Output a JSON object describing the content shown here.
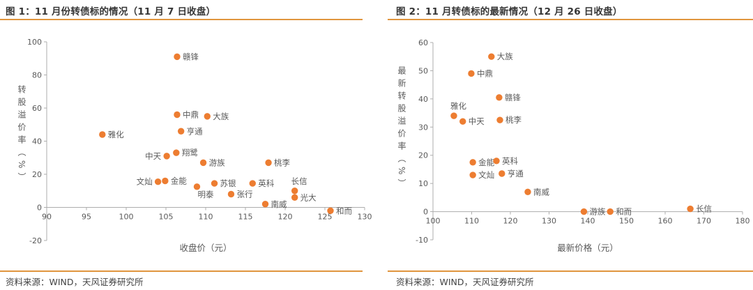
{
  "colors": {
    "marker_orange": "#ED7D31",
    "rule_orange": "#E0953E",
    "axis_line": "#ADADAD",
    "tick_text": "#595959",
    "point_label_text": "#595959",
    "title_text": "#363636",
    "source_text": "#424242"
  },
  "panels": [
    {
      "source": "资料来源：WIND，天风证券研究所"
    },
    {
      "source": "资料来源：WIND，天风证券研究所"
    }
  ],
  "chart_data": [
    {
      "type": "scatter",
      "title": "图 1：11 月份转债标的情况（11 月 7 日收盘）",
      "xlabel": "收盘价（元）",
      "ylabel": "转股溢价率（%）",
      "xlim": [
        90,
        130
      ],
      "xticks": [
        90,
        95,
        100,
        105,
        110,
        115,
        120,
        125,
        130
      ],
      "ylim": [
        -20,
        100
      ],
      "yticks": [
        -20,
        0,
        20,
        40,
        60,
        80,
        100
      ],
      "grid": false,
      "legend": "none",
      "marker_color": "#ED7D31",
      "points": [
        {
          "label": "赣锋",
          "x": 106.4,
          "y": 91,
          "label_pos": "right"
        },
        {
          "label": "中鼎",
          "x": 106.4,
          "y": 56,
          "label_pos": "right"
        },
        {
          "label": "大族",
          "x": 110.2,
          "y": 55,
          "label_pos": "right"
        },
        {
          "label": "亨通",
          "x": 106.9,
          "y": 46,
          "label_pos": "right"
        },
        {
          "label": "雅化",
          "x": 97,
          "y": 44,
          "label_pos": "right"
        },
        {
          "label": "翔鹭",
          "x": 106.3,
          "y": 33,
          "label_pos": "right"
        },
        {
          "label": "中天",
          "x": 105.1,
          "y": 31,
          "label_pos": "left"
        },
        {
          "label": "游族",
          "x": 109.7,
          "y": 27,
          "label_pos": "right"
        },
        {
          "label": "桃李",
          "x": 117.9,
          "y": 27,
          "label_pos": "right"
        },
        {
          "label": "金能",
          "x": 104.9,
          "y": 16,
          "label_pos": "right"
        },
        {
          "label": "文灿",
          "x": 104,
          "y": 15.5,
          "label_pos": "left"
        },
        {
          "label": "苏银",
          "x": 111.1,
          "y": 14.5,
          "label_pos": "right"
        },
        {
          "label": "英科",
          "x": 115.9,
          "y": 14.5,
          "label_pos": "right"
        },
        {
          "label": "明泰",
          "x": 108.9,
          "y": 12.5,
          "label_pos": "below-right"
        },
        {
          "label": "张行",
          "x": 113.2,
          "y": 8,
          "label_pos": "right"
        },
        {
          "label": "长信",
          "x": 121.2,
          "y": 10,
          "label_pos": "above"
        },
        {
          "label": "光大",
          "x": 121.2,
          "y": 6,
          "label_pos": "right"
        },
        {
          "label": "南威",
          "x": 117.5,
          "y": 2,
          "label_pos": "right"
        },
        {
          "label": "和而",
          "x": 125.7,
          "y": -2,
          "label_pos": "right"
        }
      ]
    },
    {
      "type": "scatter",
      "title": "图 2：11 月转债标的最新情况（12 月 26 日收盘）",
      "xlabel": "最新价格（元）",
      "ylabel": "最新转股溢价率（%）",
      "xlim": [
        100,
        180
      ],
      "xticks": [
        100,
        110,
        120,
        130,
        140,
        150,
        160,
        170,
        180
      ],
      "ylim": [
        -10,
        60
      ],
      "yticks": [
        -10,
        0,
        10,
        20,
        30,
        40,
        50,
        60
      ],
      "grid": false,
      "legend": "none",
      "marker_color": "#ED7D31",
      "points": [
        {
          "label": "大族",
          "x": 115.1,
          "y": 55,
          "label_pos": "right"
        },
        {
          "label": "中鼎",
          "x": 109.9,
          "y": 49,
          "label_pos": "right"
        },
        {
          "label": "赣锋",
          "x": 117.1,
          "y": 40.5,
          "label_pos": "right"
        },
        {
          "label": "雅化",
          "x": 105.4,
          "y": 34,
          "label_pos": "above"
        },
        {
          "label": "中天",
          "x": 107.7,
          "y": 32,
          "label_pos": "right"
        },
        {
          "label": "桃李",
          "x": 117.3,
          "y": 32.5,
          "label_pos": "right"
        },
        {
          "label": "金能",
          "x": 110.3,
          "y": 17.5,
          "label_pos": "right"
        },
        {
          "label": "英科",
          "x": 116.4,
          "y": 18,
          "label_pos": "right"
        },
        {
          "label": "文灿",
          "x": 110.3,
          "y": 13,
          "label_pos": "right"
        },
        {
          "label": "亨通",
          "x": 117.8,
          "y": 13.5,
          "label_pos": "right"
        },
        {
          "label": "南威",
          "x": 124.5,
          "y": 7,
          "label_pos": "right"
        },
        {
          "label": "游族",
          "x": 139,
          "y": 0,
          "label_pos": "right"
        },
        {
          "label": "和而",
          "x": 145.8,
          "y": 0,
          "label_pos": "right"
        },
        {
          "label": "长信",
          "x": 166.5,
          "y": 1,
          "label_pos": "right"
        }
      ]
    }
  ]
}
